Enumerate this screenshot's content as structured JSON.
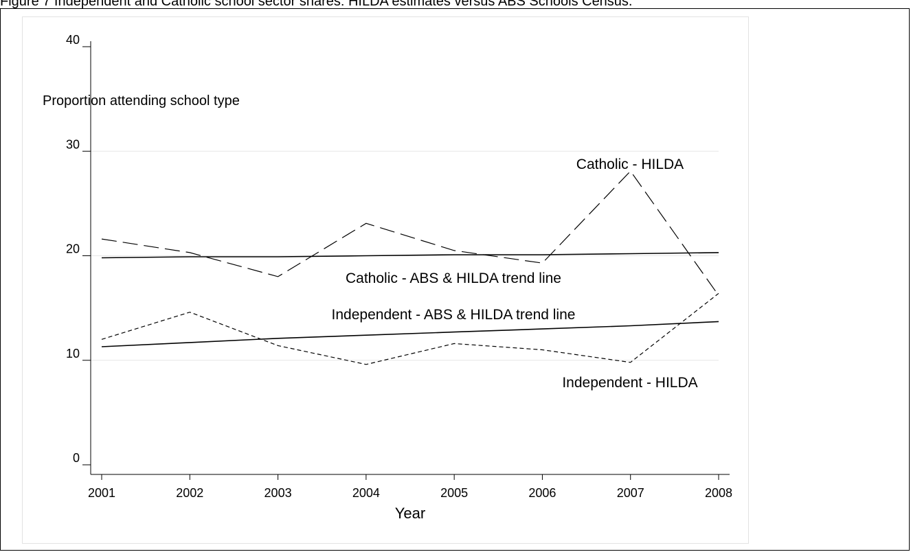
{
  "caption": "Figure 7 Independent and Catholic school sector shares: HILDA estimates versus ABS Schools Census.",
  "chart_data": {
    "type": "line",
    "title": "",
    "xlabel": "Year",
    "ylabel": "Proportion attending school type",
    "ylim": [
      0,
      40
    ],
    "yticks": [
      "0",
      "10",
      "20",
      "30",
      "40"
    ],
    "categories": [
      "2001",
      "2002",
      "2003",
      "2004",
      "2005",
      "2006",
      "2007",
      "2008"
    ],
    "grid": true,
    "series": [
      {
        "name": "Catholic - HILDA",
        "style": "long-dash",
        "values": [
          21.6,
          20.3,
          18.0,
          23.1,
          20.5,
          19.3,
          28.1,
          16.2
        ]
      },
      {
        "name": "Catholic - ABS & HILDA trend line",
        "style": "solid",
        "values": [
          19.8,
          19.9,
          19.9,
          20.0,
          20.1,
          20.1,
          20.2,
          20.3
        ]
      },
      {
        "name": "Independent - ABS & HILDA trend line",
        "style": "solid",
        "values": [
          11.3,
          11.7,
          12.1,
          12.4,
          12.7,
          13.0,
          13.3,
          13.7
        ]
      },
      {
        "name": "Independent - HILDA",
        "style": "short-dash",
        "values": [
          12.0,
          14.6,
          11.4,
          9.6,
          11.6,
          11.0,
          9.8,
          16.4
        ]
      }
    ]
  }
}
